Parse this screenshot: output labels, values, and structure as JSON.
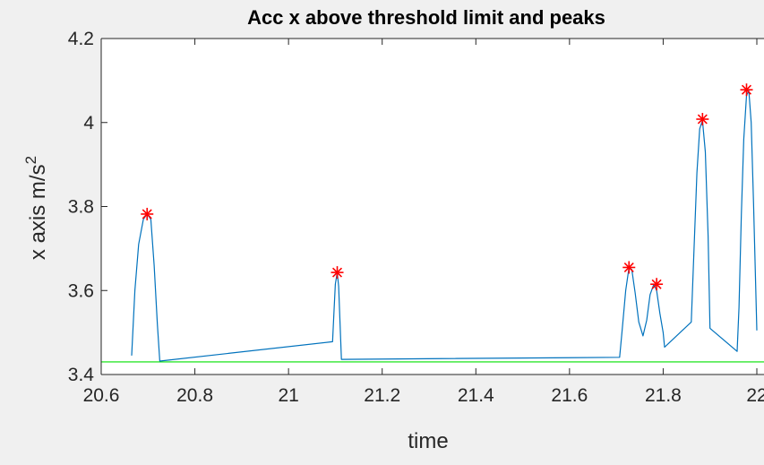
{
  "chart_data": {
    "type": "line",
    "title": "Acc x above threshold limit and peaks",
    "xlabel": "time",
    "ylabel_base": "x axis m/s",
    "ylabel_exponent": "2",
    "xlim": [
      20.6,
      22
    ],
    "ylim": [
      3.4,
      4.2
    ],
    "xticks": [
      "20.6",
      "20.8",
      "21",
      "21.2",
      "21.4",
      "21.6",
      "21.8",
      "22"
    ],
    "yticks": [
      "3.4",
      "3.6",
      "3.8",
      "4",
      "4.2"
    ],
    "grid": false,
    "colors": {
      "signal": "#0072bd",
      "threshold": "#00e000",
      "peaks": "#ff0000"
    },
    "series": [
      {
        "x": [
          20.665,
          20.672,
          20.68,
          20.69,
          20.698,
          20.706,
          20.713,
          20.72,
          20.725,
          21.094,
          21.097,
          21.1,
          21.104,
          21.107,
          21.11,
          21.113,
          21.707,
          21.712,
          21.72,
          21.727,
          21.733,
          21.74,
          21.748,
          21.757,
          21.765,
          21.772,
          21.78,
          21.786,
          21.793,
          21.8,
          21.803,
          21.86,
          21.866,
          21.872,
          21.878,
          21.884,
          21.89,
          21.896,
          21.9,
          21.958,
          21.962,
          21.967,
          21.972,
          21.978,
          21.983,
          21.988,
          21.993,
          22
        ],
        "y": [
          3.445,
          3.6,
          3.71,
          3.77,
          3.782,
          3.77,
          3.66,
          3.52,
          3.432,
          3.478,
          3.55,
          3.615,
          3.643,
          3.61,
          3.52,
          3.436,
          3.441,
          3.5,
          3.6,
          3.655,
          3.65,
          3.595,
          3.525,
          3.492,
          3.53,
          3.59,
          3.615,
          3.6,
          3.545,
          3.5,
          3.465,
          3.525,
          3.7,
          3.88,
          3.985,
          4.005,
          3.93,
          3.73,
          3.51,
          3.455,
          3.56,
          3.78,
          3.96,
          4.065,
          4.075,
          4.0,
          3.81,
          3.505
        ]
      }
    ],
    "threshold": 3.43,
    "peaks": {
      "x": [
        20.698,
        21.104,
        21.727,
        21.786,
        21.884,
        21.978
      ],
      "y": [
        3.782,
        3.643,
        3.655,
        3.615,
        4.008,
        4.078
      ]
    }
  }
}
